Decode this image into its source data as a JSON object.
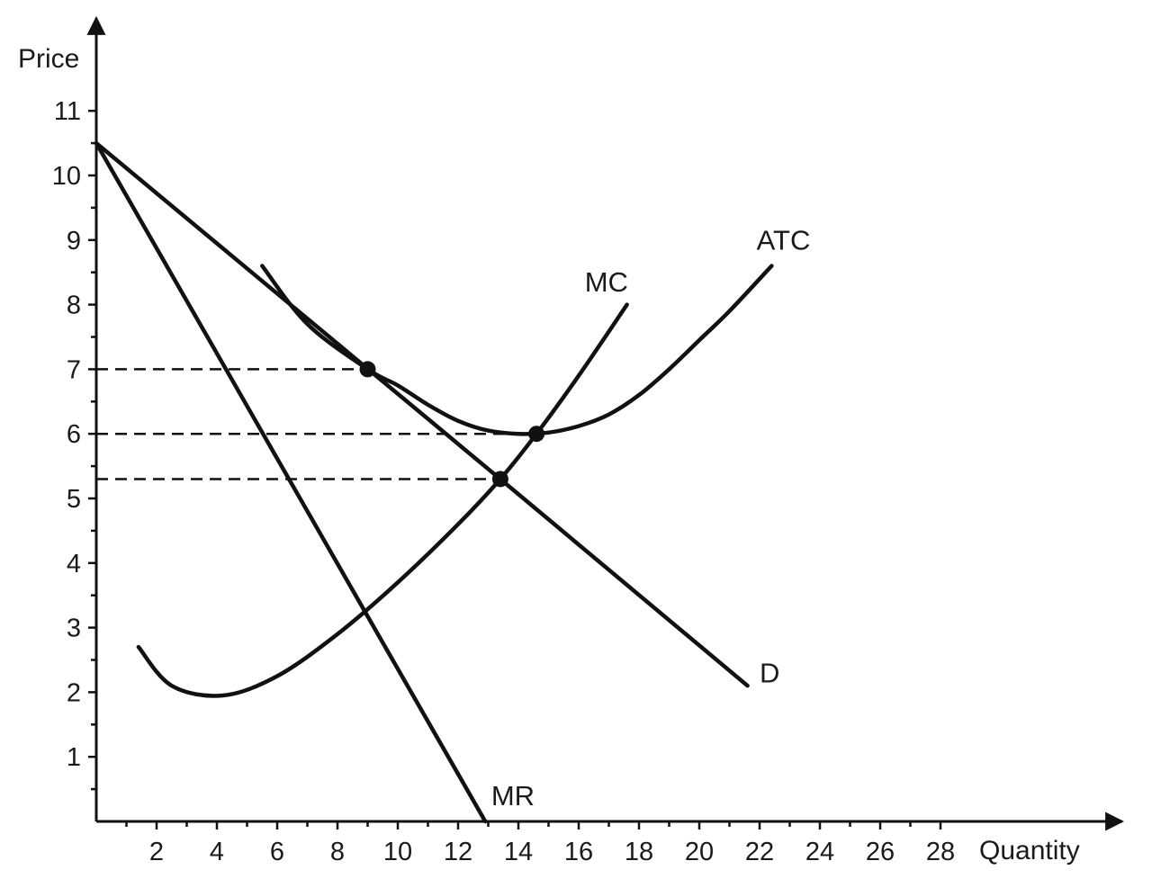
{
  "chart_data": {
    "type": "line",
    "title": "",
    "xlabel": "Quantity",
    "ylabel": "Price",
    "xlim": [
      0,
      31.5
    ],
    "ylim": [
      0,
      11.8
    ],
    "x_major_ticks": [
      2,
      4,
      6,
      8,
      10,
      12,
      14,
      16,
      18,
      20,
      22,
      24,
      26,
      28
    ],
    "x_minor_ticks": [
      1,
      3,
      5,
      7,
      9,
      11,
      13,
      15,
      17,
      19,
      21,
      23,
      25,
      27
    ],
    "y_major_ticks": [
      1,
      2,
      3,
      4,
      5,
      6,
      7,
      8,
      9,
      10,
      11
    ],
    "y_minor_ticks": [
      0.5,
      1.5,
      2.5,
      3.5,
      4.5,
      5.5,
      6.5,
      7.5,
      8.5,
      9.5,
      10.5
    ],
    "grid": false,
    "legend": "none",
    "series": [
      {
        "name": "D",
        "kind": "line",
        "points": [
          [
            0,
            10.5
          ],
          [
            13.4,
            5.3
          ],
          [
            21.6,
            2.1
          ]
        ]
      },
      {
        "name": "MR",
        "kind": "line",
        "points": [
          [
            0,
            10.5
          ],
          [
            12.9,
            0
          ]
        ]
      },
      {
        "name": "MC",
        "kind": "curve",
        "points": [
          [
            1.4,
            2.7
          ],
          [
            2.5,
            2.1
          ],
          [
            4.2,
            1.95
          ],
          [
            6,
            2.25
          ],
          [
            8,
            2.9
          ],
          [
            10,
            3.7
          ],
          [
            12,
            4.6
          ],
          [
            13.4,
            5.3
          ],
          [
            14.6,
            6.0
          ],
          [
            16,
            6.9
          ],
          [
            17.6,
            8.0
          ]
        ]
      },
      {
        "name": "ATC",
        "kind": "curve",
        "points": [
          [
            5.5,
            8.6
          ],
          [
            7,
            7.7
          ],
          [
            9,
            7.0
          ],
          [
            10,
            6.75
          ],
          [
            11,
            6.45
          ],
          [
            12,
            6.2
          ],
          [
            13,
            6.05
          ],
          [
            14,
            6.0
          ],
          [
            15,
            6.02
          ],
          [
            16,
            6.12
          ],
          [
            17,
            6.3
          ],
          [
            18,
            6.6
          ],
          [
            19,
            7.0
          ],
          [
            20,
            7.45
          ],
          [
            21,
            7.9
          ],
          [
            22.4,
            8.6
          ]
        ]
      }
    ],
    "curve_labels": [
      {
        "text": "D",
        "x": 22.0,
        "y": 2.15
      },
      {
        "text": "MR",
        "x": 13.1,
        "y": 0.25
      },
      {
        "text": "MC",
        "x": 16.2,
        "y": 8.2
      },
      {
        "text": "ATC",
        "x": 21.9,
        "y": 8.85
      }
    ],
    "highlight_points": [
      [
        9,
        7.0
      ],
      [
        14.6,
        6.0
      ],
      [
        13.4,
        5.3
      ]
    ],
    "dashed_levels": [
      {
        "y": 7.0,
        "x_end": 9
      },
      {
        "y": 6.0,
        "x_end": 14.6
      },
      {
        "y": 5.3,
        "x_end": 13.4
      }
    ]
  }
}
